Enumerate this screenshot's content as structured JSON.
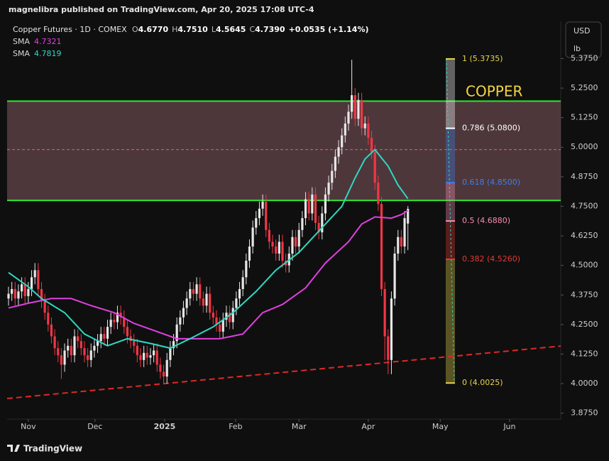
{
  "chart_data": {
    "type": "candlestick",
    "header": "magnelibra published on TradingView.com, Apr 20, 2025 17:08 UTC-4",
    "title": "Copper Futures · 1D · COMEX",
    "ohlc_legend": [
      {
        "key": "O",
        "value": "4.6770"
      },
      {
        "key": "H",
        "value": "4.7510"
      },
      {
        "key": "L",
        "value": "4.5645"
      },
      {
        "key": "C",
        "value": "4.7390"
      }
    ],
    "change": "+0.0535 (+1.14%)",
    "currency": "USD",
    "unit": "lb",
    "brand": "TradingView",
    "annotation": {
      "text": "COPPER",
      "color": "#f5d742",
      "value": 5.25
    },
    "up_color": "#e6e6e6",
    "down_color": "#f23645",
    "open": [
      4.36,
      4.38,
      4.4,
      4.36,
      4.39,
      4.42,
      4.37,
      4.4,
      4.45,
      4.48,
      4.4,
      4.35,
      4.3,
      4.25,
      4.2,
      4.15,
      4.12,
      4.08,
      4.14,
      4.16,
      4.12,
      4.2,
      4.18,
      4.15,
      4.12,
      4.1,
      4.14,
      4.16,
      4.18,
      4.21,
      4.19,
      4.24,
      4.27,
      4.26,
      4.3,
      4.28,
      4.24,
      4.2,
      4.18,
      4.16,
      4.12,
      4.1,
      4.13,
      4.11,
      4.12,
      4.14,
      4.08,
      4.05,
      4.03,
      4.1,
      4.15,
      4.18,
      4.25,
      4.28,
      4.32,
      4.36,
      4.4,
      4.38,
      4.42,
      4.36,
      4.33,
      4.38,
      4.3,
      4.28,
      4.25,
      4.22,
      4.27,
      4.3,
      4.26,
      4.32,
      4.36,
      4.4,
      4.45,
      4.52,
      4.58,
      4.66,
      4.7,
      4.74,
      4.77,
      4.65,
      4.6,
      4.58,
      4.55,
      4.6,
      4.52,
      4.5,
      4.55,
      4.62,
      4.58,
      4.65,
      4.7,
      4.78,
      4.72,
      4.8,
      4.68,
      4.64,
      4.72,
      4.8,
      4.85,
      4.9,
      4.96,
      5.0,
      5.05,
      5.1,
      5.15,
      5.22,
      5.12,
      5.2,
      5.08,
      5.1,
      5.04,
      4.98,
      4.85,
      4.76,
      4.4,
      4.2,
      4.1,
      4.36,
      4.55,
      4.62,
      4.58,
      4.677
    ],
    "high": [
      4.41,
      4.43,
      4.43,
      4.42,
      4.45,
      4.45,
      4.43,
      4.48,
      4.51,
      4.51,
      4.43,
      4.38,
      4.33,
      4.28,
      4.23,
      4.18,
      4.15,
      4.17,
      4.19,
      4.19,
      4.23,
      4.23,
      4.21,
      4.18,
      4.15,
      4.17,
      4.19,
      4.21,
      4.24,
      4.24,
      4.27,
      4.3,
      4.3,
      4.33,
      4.33,
      4.31,
      4.27,
      4.23,
      4.21,
      4.19,
      4.15,
      4.16,
      4.16,
      4.15,
      4.17,
      4.17,
      4.11,
      4.08,
      4.13,
      4.18,
      4.21,
      4.28,
      4.31,
      4.35,
      4.39,
      4.43,
      4.43,
      4.45,
      4.45,
      4.39,
      4.41,
      4.41,
      4.33,
      4.31,
      4.28,
      4.3,
      4.33,
      4.33,
      4.35,
      4.39,
      4.43,
      4.48,
      4.55,
      4.61,
      4.69,
      4.73,
      4.77,
      4.8,
      4.8,
      4.68,
      4.63,
      4.61,
      4.63,
      4.63,
      4.55,
      4.58,
      4.65,
      4.65,
      4.68,
      4.73,
      4.81,
      4.81,
      4.83,
      4.83,
      4.71,
      4.75,
      4.83,
      4.88,
      4.93,
      4.99,
      5.03,
      5.08,
      5.13,
      5.18,
      5.37,
      5.25,
      5.23,
      5.23,
      5.13,
      5.13,
      5.07,
      5.01,
      4.88,
      4.79,
      4.43,
      4.23,
      4.39,
      4.58,
      4.65,
      4.65,
      4.73,
      4.751
    ],
    "low": [
      4.33,
      4.35,
      4.33,
      4.33,
      4.36,
      4.34,
      4.34,
      4.37,
      4.42,
      4.37,
      4.32,
      4.27,
      4.22,
      4.17,
      4.12,
      4.09,
      4.02,
      4.05,
      4.11,
      4.09,
      4.09,
      4.15,
      4.12,
      4.09,
      4.07,
      4.07,
      4.11,
      4.13,
      4.15,
      4.16,
      4.16,
      4.21,
      4.23,
      4.23,
      4.25,
      4.21,
      4.17,
      4.15,
      4.13,
      4.09,
      4.07,
      4.07,
      4.08,
      4.08,
      4.09,
      4.05,
      4.02,
      4.0,
      4.0,
      4.07,
      4.12,
      4.15,
      4.22,
      4.25,
      4.29,
      4.33,
      4.35,
      4.35,
      4.33,
      4.3,
      4.3,
      4.27,
      4.25,
      4.22,
      4.19,
      4.19,
      4.24,
      4.23,
      4.23,
      4.29,
      4.33,
      4.37,
      4.42,
      4.49,
      4.55,
      4.63,
      4.67,
      4.71,
      4.62,
      4.57,
      4.55,
      4.52,
      4.52,
      4.49,
      4.47,
      4.47,
      4.52,
      4.55,
      4.55,
      4.62,
      4.67,
      4.69,
      4.69,
      4.65,
      4.61,
      4.61,
      4.69,
      4.77,
      4.82,
      4.87,
      4.93,
      4.97,
      5.02,
      5.07,
      5.12,
      5.09,
      5.09,
      5.05,
      5.05,
      5.01,
      4.95,
      4.82,
      4.73,
      4.37,
      4.1,
      4.04,
      4.04,
      4.33,
      4.52,
      4.55,
      4.55,
      4.5645
    ],
    "close": [
      4.38,
      4.4,
      4.36,
      4.39,
      4.42,
      4.37,
      4.4,
      4.45,
      4.48,
      4.4,
      4.35,
      4.3,
      4.25,
      4.2,
      4.15,
      4.12,
      4.08,
      4.14,
      4.16,
      4.12,
      4.2,
      4.18,
      4.15,
      4.12,
      4.1,
      4.14,
      4.16,
      4.18,
      4.21,
      4.19,
      4.24,
      4.27,
      4.26,
      4.3,
      4.28,
      4.24,
      4.2,
      4.18,
      4.16,
      4.12,
      4.1,
      4.13,
      4.11,
      4.12,
      4.14,
      4.08,
      4.05,
      4.03,
      4.1,
      4.15,
      4.18,
      4.25,
      4.28,
      4.32,
      4.36,
      4.4,
      4.38,
      4.42,
      4.36,
      4.33,
      4.38,
      4.3,
      4.28,
      4.25,
      4.22,
      4.27,
      4.3,
      4.26,
      4.32,
      4.36,
      4.4,
      4.45,
      4.52,
      4.58,
      4.66,
      4.7,
      4.74,
      4.77,
      4.65,
      4.6,
      4.58,
      4.55,
      4.6,
      4.52,
      4.5,
      4.55,
      4.62,
      4.58,
      4.65,
      4.7,
      4.78,
      4.72,
      4.8,
      4.68,
      4.64,
      4.72,
      4.8,
      4.85,
      4.9,
      4.96,
      5.0,
      5.05,
      5.1,
      5.15,
      5.22,
      5.12,
      5.2,
      5.08,
      5.1,
      5.04,
      4.98,
      4.85,
      4.76,
      4.4,
      4.2,
      4.1,
      4.36,
      4.55,
      4.62,
      4.58,
      4.7,
      4.739
    ],
    "series": [
      {
        "name": "SMA",
        "legend_value": "4.7321",
        "color": "#e040e0",
        "x": [
          0,
          6,
          13,
          19,
          25,
          32,
          38,
          45,
          51,
          58,
          64,
          71,
          77,
          83,
          90,
          96,
          103,
          107,
          111,
          116,
          119,
          121
        ],
        "values": [
          4.32,
          4.34,
          4.36,
          4.36,
          4.33,
          4.3,
          4.255,
          4.22,
          4.19,
          4.19,
          4.19,
          4.21,
          4.3,
          4.335,
          4.405,
          4.51,
          4.6,
          4.675,
          4.705,
          4.7,
          4.715,
          4.7321
        ]
      },
      {
        "name": "SMA",
        "legend_value": "4.7819",
        "color": "#2ed8c3",
        "x": [
          0,
          6,
          10,
          17,
          23,
          30,
          36,
          43,
          49,
          55,
          62,
          68,
          75,
          81,
          88,
          94,
          101,
          105,
          108,
          111,
          115,
          118,
          121
        ],
        "values": [
          4.47,
          4.41,
          4.36,
          4.3,
          4.21,
          4.16,
          4.19,
          4.17,
          4.15,
          4.19,
          4.24,
          4.3,
          4.39,
          4.48,
          4.555,
          4.645,
          4.75,
          4.87,
          4.95,
          4.99,
          4.92,
          4.84,
          4.7819
        ]
      }
    ],
    "levels": [
      {
        "value": 5.195,
        "color": "#2ee62e"
      },
      {
        "value": 4.775,
        "color": "#2ee62e"
      }
    ],
    "zone_color": "#f4a3b0",
    "midline": {
      "value": 4.99,
      "color": "#e06070"
    },
    "trendline": {
      "x": [
        -0.43,
        167.3
      ],
      "values": [
        3.937,
        4.159
      ],
      "color": "#e02828"
    },
    "fib_levels": [
      {
        "value": 5.3735,
        "label": "1 (5.3735)",
        "color": "#e8d44d"
      },
      {
        "value": 5.08,
        "label": "0.786 (5.0800)",
        "color": "#ffffff"
      },
      {
        "value": 4.85,
        "label": "0.618 (4.8500)",
        "color": "#3f7fe8"
      },
      {
        "value": 4.688,
        "label": "0.5 (4.6880)",
        "color": "#f48fb1"
      },
      {
        "value": 4.526,
        "label": "0.382 (4.5260)",
        "color": "#e53935"
      },
      {
        "value": 4.0025,
        "label": "0 (4.0025)",
        "color": "#e8d44d"
      }
    ],
    "xlim": [
      -0.43,
      167.3
    ],
    "xticks": [
      {
        "value": 6,
        "label": "Nov"
      },
      {
        "value": 26.2,
        "label": "Dec"
      },
      {
        "value": 47.3,
        "label": "2025"
      },
      {
        "value": 68.8,
        "label": "Feb"
      },
      {
        "value": 88,
        "label": "Mar"
      },
      {
        "value": 109,
        "label": "Apr"
      },
      {
        "value": 130.8,
        "label": "May"
      },
      {
        "value": 151.8,
        "label": "Jun"
      }
    ],
    "ylim": [
      3.85,
      5.5325
    ],
    "yticks": [
      {
        "value": 3.875,
        "label": "3.8750"
      },
      {
        "value": 4,
        "label": "4.0000"
      },
      {
        "value": 4.125,
        "label": "4.1250"
      },
      {
        "value": 4.25,
        "label": "4.2500"
      },
      {
        "value": 4.375,
        "label": "4.3750"
      },
      {
        "value": 4.5,
        "label": "4.5000"
      },
      {
        "value": 4.625,
        "label": "4.6250"
      },
      {
        "value": 4.75,
        "label": "4.7500"
      },
      {
        "value": 4.875,
        "label": "4.8750"
      },
      {
        "value": 5,
        "label": "5.0000"
      },
      {
        "value": 5.125,
        "label": "5.1250"
      },
      {
        "value": 5.25,
        "label": "5.2500"
      },
      {
        "value": 5.375,
        "label": "5.3750"
      }
    ],
    "grid": false
  }
}
